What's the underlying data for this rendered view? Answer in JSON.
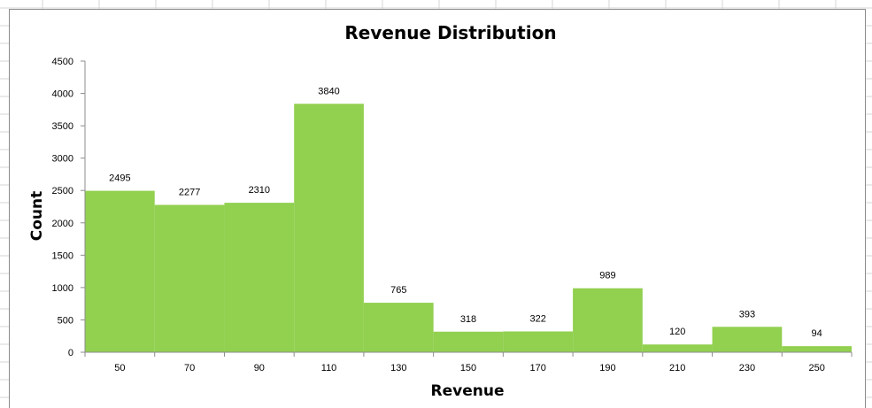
{
  "chart_data": {
    "type": "bar",
    "title": "Revenue Distribution",
    "xlabel": "Revenue",
    "ylabel": "Count",
    "categories": [
      "50",
      "70",
      "90",
      "110",
      "130",
      "150",
      "170",
      "190",
      "210",
      "230",
      "250"
    ],
    "values": [
      2495,
      2277,
      2310,
      3840,
      765,
      318,
      322,
      989,
      120,
      393,
      94
    ],
    "ylim": [
      0,
      4500
    ],
    "yticks": [
      0,
      500,
      1000,
      1500,
      2000,
      2500,
      3000,
      3500,
      4000,
      4500
    ],
    "data_labels": true,
    "grid": false,
    "legend": "none",
    "bar_color": "#92d050"
  }
}
